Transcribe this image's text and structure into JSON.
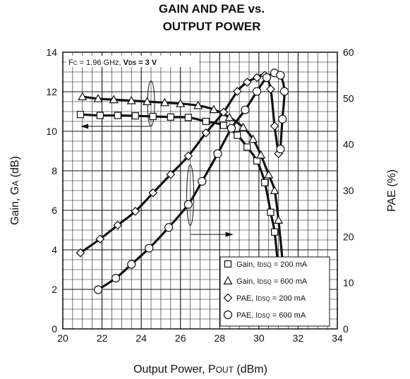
{
  "chart_data": {
    "type": "line",
    "title_line1": "GAIN AND PAE vs.",
    "title_line2": "OUTPUT POWER",
    "xlabel": "Output Power, P",
    "xlabel_sub": "OUT",
    "xlabel_unit": " (dBm)",
    "ylabel_left": "Gain, G",
    "ylabel_left_sub": "A",
    "ylabel_left_unit": " (dB)",
    "ylabel_right": "PAE (%)",
    "xlim": [
      20,
      34
    ],
    "ylim_left": [
      0,
      14
    ],
    "ylim_right": [
      0,
      60
    ],
    "x_ticks": [
      "20",
      "22",
      "24",
      "26",
      "28",
      "30",
      "32",
      "34"
    ],
    "y_left_ticks": [
      "0",
      "2",
      "4",
      "6",
      "8",
      "10",
      "12",
      "14"
    ],
    "y_right_ticks": [
      "0",
      "10",
      "20",
      "30",
      "40",
      "50",
      "60"
    ],
    "grid": true,
    "condition": {
      "prefix": "F",
      "prefix_sub": "C",
      "value": " = 1.96 GHz, ",
      "bold_prefix": "V",
      "bold_sub": "DS",
      "bold_value": " = 3 V"
    },
    "legend_position": "bottom-right",
    "series": [
      {
        "name": "Gain, IDSQ = 200 mA",
        "legend_main": "Gain, I",
        "legend_sub": "DSQ",
        "legend_value": " = 200 mA",
        "marker": "square",
        "axis": "left",
        "x": [
          20.9,
          21.9,
          22.8,
          23.7,
          24.6,
          25.5,
          26.4,
          27.3,
          28.2,
          28.9,
          29.4,
          29.9,
          30.3,
          30.6,
          30.8,
          31.0
        ],
        "y": [
          10.85,
          10.8,
          10.8,
          10.78,
          10.75,
          10.72,
          10.7,
          10.5,
          10.3,
          9.8,
          9.2,
          8.5,
          7.4,
          5.9,
          4.9,
          3.0
        ]
      },
      {
        "name": "Gain, IDSQ = 600 mA",
        "legend_main": "Gain, I",
        "legend_sub": "DSQ",
        "legend_value": " = 600 mA",
        "marker": "triangle",
        "axis": "left",
        "x": [
          21.0,
          21.8,
          22.6,
          23.5,
          24.3,
          25.2,
          26.0,
          26.9,
          27.7,
          28.5,
          29.2,
          29.7,
          30.1,
          30.5,
          30.8,
          31.0,
          31.2
        ],
        "y": [
          11.75,
          11.65,
          11.6,
          11.55,
          11.5,
          11.45,
          11.4,
          11.3,
          11.1,
          10.7,
          10.2,
          9.6,
          8.8,
          7.8,
          7.0,
          5.5,
          3.5
        ]
      },
      {
        "name": "PAE, IDSQ = 200 mA",
        "legend_main": "PAE, I",
        "legend_sub": "DSQ",
        "legend_value": " = 200 mA",
        "marker": "diamond",
        "axis": "right",
        "x": [
          20.9,
          21.9,
          22.8,
          23.7,
          24.6,
          25.5,
          26.4,
          27.3,
          28.2,
          28.9,
          29.4,
          29.9,
          30.3,
          30.6,
          30.8,
          31.0
        ],
        "y": [
          16.5,
          19.5,
          22.5,
          25.5,
          29.5,
          33.5,
          37.5,
          42.5,
          47.0,
          51.5,
          53.5,
          54.5,
          55.0,
          52.0,
          44.0,
          38.0
        ]
      },
      {
        "name": "PAE, IDSQ = 600 mA",
        "legend_main": "PAE, I",
        "legend_sub": "DSQ",
        "legend_value": " = 600 mA",
        "marker": "circle",
        "axis": "right",
        "x": [
          21.8,
          22.7,
          23.5,
          24.4,
          25.4,
          26.4,
          27.1,
          27.9,
          28.6,
          29.3,
          29.9,
          30.4,
          30.8,
          31.1,
          31.3,
          31.2,
          31.1
        ],
        "y": [
          8.5,
          11.0,
          14.0,
          17.5,
          22.0,
          27.0,
          32.0,
          38.0,
          43.5,
          47.5,
          51.5,
          54.5,
          55.5,
          55.0,
          51.5,
          45.5,
          39.0
        ]
      }
    ]
  }
}
